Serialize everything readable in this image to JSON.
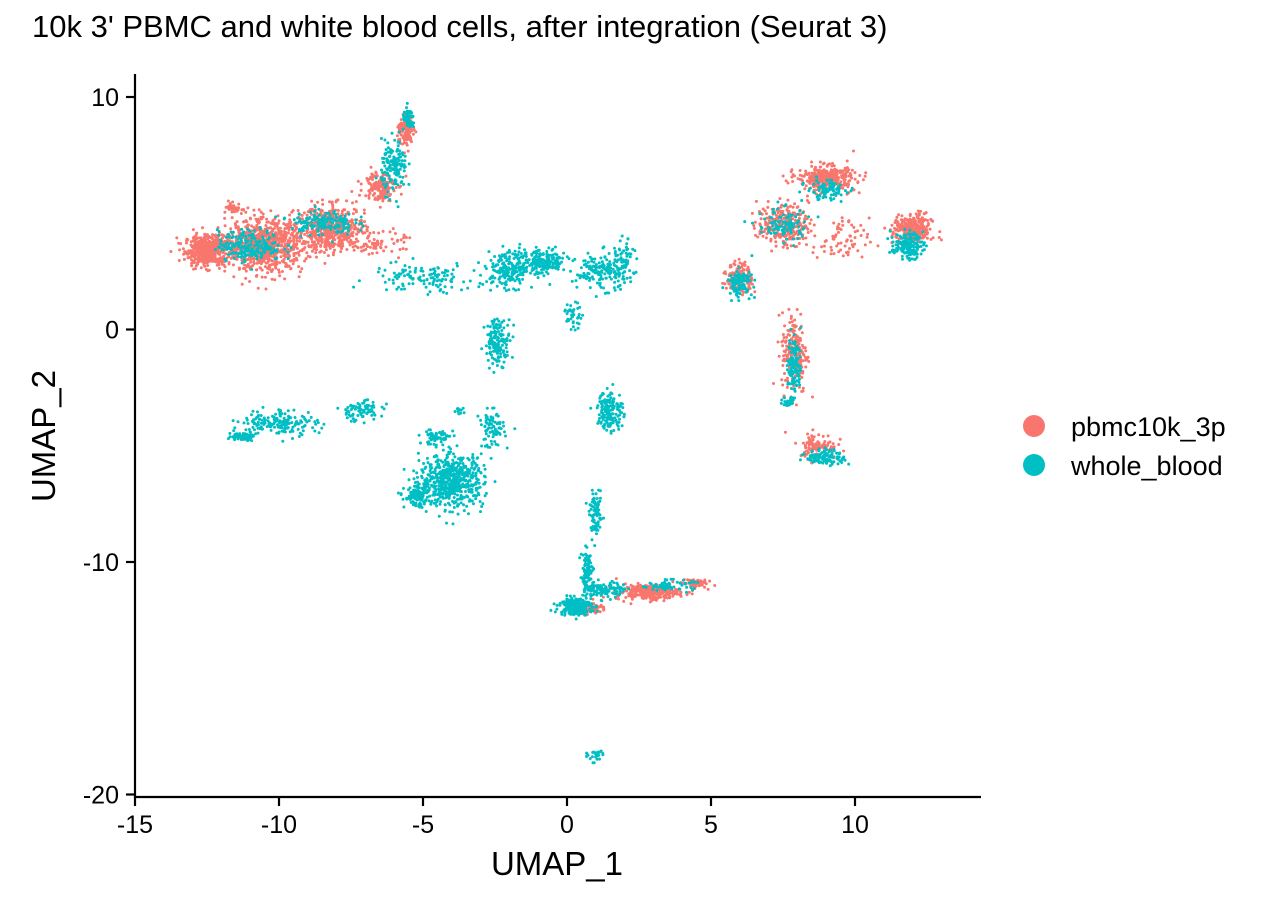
{
  "chart_data": {
    "type": "scatter",
    "title": "10k 3' PBMC and white blood cells, after integration (Seurat 3)",
    "xlabel": "UMAP_1",
    "ylabel": "UMAP_2",
    "xlim": [
      -15,
      14.5
    ],
    "ylim": [
      -20.2,
      11
    ],
    "xticks": [
      -15,
      -10,
      -5,
      0,
      5,
      10
    ],
    "xtick_labels": [
      "-15",
      "-10",
      "-5",
      "0",
      "5",
      "10"
    ],
    "yticks": [
      -20,
      -10,
      0,
      10
    ],
    "ytick_labels": [
      "-20",
      "-10",
      "0",
      "10"
    ],
    "grid": false,
    "legend": {
      "position": "right",
      "entries": [
        "pbmc10k_3p",
        "whole_blood"
      ]
    },
    "series": [
      {
        "name": "pbmc10k_3p",
        "color": "#F8766D",
        "clusters": [
          {
            "x": -12.5,
            "y": 3.4,
            "sx": 0.7,
            "sy": 0.6,
            "n": 500
          },
          {
            "x": -10.5,
            "y": 3.6,
            "sx": 1.2,
            "sy": 1.0,
            "n": 800
          },
          {
            "x": -8.2,
            "y": 4.3,
            "sx": 1.1,
            "sy": 0.9,
            "n": 550
          },
          {
            "x": -6.5,
            "y": 6.2,
            "sx": 0.5,
            "sy": 0.6,
            "n": 150
          },
          {
            "x": -5.6,
            "y": 8.5,
            "sx": 0.25,
            "sy": 0.6,
            "n": 120
          },
          {
            "x": -11.5,
            "y": 5.2,
            "sx": 0.3,
            "sy": 0.2,
            "n": 40
          },
          {
            "x": -6.5,
            "y": 3.7,
            "sx": 0.8,
            "sy": 0.4,
            "n": 60
          },
          {
            "x": 9.0,
            "y": 6.5,
            "sx": 0.9,
            "sy": 0.5,
            "n": 350
          },
          {
            "x": 7.5,
            "y": 4.5,
            "sx": 0.8,
            "sy": 0.8,
            "n": 260
          },
          {
            "x": 6.0,
            "y": 2.2,
            "sx": 0.4,
            "sy": 0.6,
            "n": 160
          },
          {
            "x": 12.0,
            "y": 4.3,
            "sx": 0.6,
            "sy": 0.6,
            "n": 280
          },
          {
            "x": 9.5,
            "y": 3.8,
            "sx": 0.9,
            "sy": 0.9,
            "n": 70
          },
          {
            "x": 7.9,
            "y": -1.0,
            "sx": 0.4,
            "sy": 1.6,
            "n": 200
          },
          {
            "x": 8.7,
            "y": -5.0,
            "sx": 0.6,
            "sy": 0.5,
            "n": 100
          },
          {
            "x": 2.8,
            "y": -11.3,
            "sx": 1.0,
            "sy": 0.3,
            "n": 250
          },
          {
            "x": 4.4,
            "y": -10.9,
            "sx": 0.4,
            "sy": 0.2,
            "n": 60
          },
          {
            "x": 0.8,
            "y": -12.0,
            "sx": 0.5,
            "sy": 0.2,
            "n": 80
          }
        ]
      },
      {
        "name": "whole_blood",
        "color": "#00BFC4",
        "clusters": [
          {
            "x": -11.0,
            "y": 3.6,
            "sx": 1.0,
            "sy": 0.6,
            "n": 220
          },
          {
            "x": -8.5,
            "y": 4.6,
            "sx": 1.0,
            "sy": 0.5,
            "n": 160
          },
          {
            "x": -6.0,
            "y": 7.0,
            "sx": 0.4,
            "sy": 1.0,
            "n": 150
          },
          {
            "x": -5.5,
            "y": 9.0,
            "sx": 0.2,
            "sy": 0.4,
            "n": 50
          },
          {
            "x": -5.0,
            "y": 2.2,
            "sx": 1.6,
            "sy": 0.6,
            "n": 120
          },
          {
            "x": -2.0,
            "y": 2.6,
            "sx": 0.8,
            "sy": 0.7,
            "n": 200
          },
          {
            "x": -0.8,
            "y": 2.9,
            "sx": 0.7,
            "sy": 0.5,
            "n": 180
          },
          {
            "x": 1.2,
            "y": 2.5,
            "sx": 0.8,
            "sy": 0.7,
            "n": 160
          },
          {
            "x": 2.0,
            "y": 2.8,
            "sx": 0.3,
            "sy": 0.9,
            "n": 60
          },
          {
            "x": 0.2,
            "y": 0.6,
            "sx": 0.3,
            "sy": 0.5,
            "n": 40
          },
          {
            "x": -2.4,
            "y": -0.5,
            "sx": 0.4,
            "sy": 0.9,
            "n": 150
          },
          {
            "x": -3.7,
            "y": -3.5,
            "sx": 0.2,
            "sy": 0.15,
            "n": 10
          },
          {
            "x": -10.0,
            "y": -4.0,
            "sx": 1.2,
            "sy": 0.5,
            "n": 170
          },
          {
            "x": -11.3,
            "y": -4.6,
            "sx": 0.4,
            "sy": 0.15,
            "n": 70
          },
          {
            "x": -7.2,
            "y": -3.5,
            "sx": 0.7,
            "sy": 0.4,
            "n": 80
          },
          {
            "x": -4.0,
            "y": -6.5,
            "sx": 1.0,
            "sy": 1.0,
            "n": 600
          },
          {
            "x": -5.2,
            "y": -7.2,
            "sx": 0.4,
            "sy": 0.4,
            "n": 120
          },
          {
            "x": -4.5,
            "y": -4.6,
            "sx": 0.5,
            "sy": 0.3,
            "n": 60
          },
          {
            "x": -2.6,
            "y": -4.3,
            "sx": 0.4,
            "sy": 0.7,
            "n": 80
          },
          {
            "x": 1.5,
            "y": -3.5,
            "sx": 0.4,
            "sy": 0.8,
            "n": 150
          },
          {
            "x": 1.0,
            "y": -8.0,
            "sx": 0.2,
            "sy": 0.8,
            "n": 90
          },
          {
            "x": 0.7,
            "y": -10.3,
            "sx": 0.2,
            "sy": 0.7,
            "n": 80
          },
          {
            "x": 0.3,
            "y": -11.9,
            "sx": 0.5,
            "sy": 0.35,
            "n": 260
          },
          {
            "x": 1.3,
            "y": -11.2,
            "sx": 0.6,
            "sy": 0.3,
            "n": 120
          },
          {
            "x": 3.5,
            "y": -11.0,
            "sx": 0.8,
            "sy": 0.2,
            "n": 70
          },
          {
            "x": 1.0,
            "y": -18.3,
            "sx": 0.25,
            "sy": 0.25,
            "n": 30
          },
          {
            "x": 7.5,
            "y": 4.5,
            "sx": 0.8,
            "sy": 0.7,
            "n": 100
          },
          {
            "x": 6.0,
            "y": 2.0,
            "sx": 0.4,
            "sy": 0.5,
            "n": 110
          },
          {
            "x": 9.0,
            "y": 6.0,
            "sx": 0.6,
            "sy": 0.4,
            "n": 90
          },
          {
            "x": 11.8,
            "y": 3.6,
            "sx": 0.5,
            "sy": 0.5,
            "n": 150
          },
          {
            "x": 7.9,
            "y": -1.5,
            "sx": 0.2,
            "sy": 1.2,
            "n": 110
          },
          {
            "x": 7.7,
            "y": -3.1,
            "sx": 0.2,
            "sy": 0.2,
            "n": 30
          },
          {
            "x": 9.0,
            "y": -5.5,
            "sx": 0.6,
            "sy": 0.3,
            "n": 110
          }
        ]
      }
    ]
  }
}
